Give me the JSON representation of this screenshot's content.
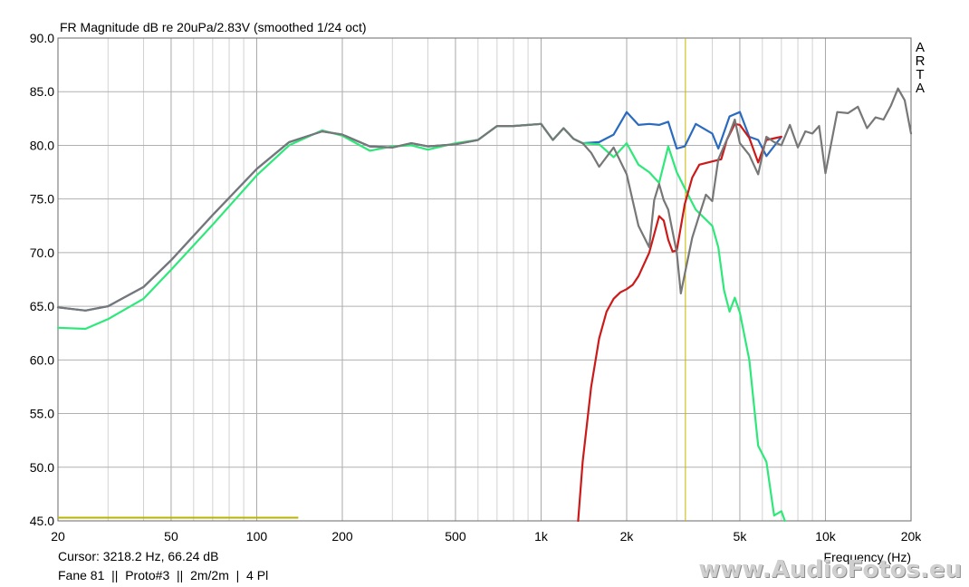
{
  "chart_data": {
    "type": "line",
    "title": "FR Magnitude dB re 20uPa/2.83V (smoothed 1/24 oct)",
    "xlabel": "Frequency (Hz)",
    "ylabel": "",
    "xscale": "log",
    "xlim": [
      20,
      20000
    ],
    "ylim": [
      45,
      90
    ],
    "grid": true,
    "x_tick_labels": [
      "20",
      "50",
      "100",
      "200",
      "500",
      "1k",
      "2k",
      "5k",
      "10k",
      "20k"
    ],
    "y_tick_labels": [
      "90.0",
      "85.0",
      "80.0",
      "75.0",
      "70.0",
      "65.0",
      "60.0",
      "55.0",
      "50.0",
      "45.0"
    ],
    "brand_vertical": "ARTA",
    "cursor_x": 3218.2,
    "marker_segment": {
      "x": [
        20,
        140
      ],
      "y": 45.3
    },
    "series": [
      {
        "color": "#2a6bbf",
        "x": [
          20,
          25,
          30,
          40,
          50,
          70,
          100,
          130,
          170,
          200,
          250,
          300,
          350,
          400,
          500,
          600,
          700,
          800,
          1000,
          1100,
          1200,
          1300,
          1400,
          1600,
          1800,
          2000,
          2200,
          2400,
          2600,
          2800,
          3000,
          3200,
          3500,
          4000,
          4200,
          4600,
          5000,
          5400,
          5800,
          6200,
          7000
        ],
        "y": [
          64.9,
          64.6,
          65.0,
          66.8,
          69.3,
          73.5,
          77.8,
          80.3,
          81.3,
          81.0,
          79.9,
          79.8,
          80.2,
          79.9,
          80.1,
          80.5,
          81.8,
          81.8,
          82.0,
          80.5,
          81.6,
          80.6,
          80.2,
          80.3,
          81.0,
          83.1,
          81.9,
          82.0,
          81.9,
          82.2,
          79.7,
          79.9,
          82.0,
          81.1,
          79.7,
          82.7,
          83.1,
          80.8,
          80.5,
          79.0,
          80.8
        ]
      },
      {
        "color": "#cc1a1a",
        "x": [
          1350,
          1400,
          1500,
          1600,
          1700,
          1800,
          1900,
          2000,
          2100,
          2200,
          2400,
          2600,
          2700,
          2800,
          2900,
          3000,
          3200,
          3400,
          3600,
          4000,
          4300,
          4500,
          4800,
          5000,
          5400,
          5800,
          6200,
          7000
        ],
        "y": [
          45.0,
          50.5,
          57.5,
          62.0,
          64.5,
          65.7,
          66.3,
          66.6,
          67.0,
          67.8,
          70.0,
          73.4,
          73.0,
          71.2,
          70.1,
          70.2,
          74.5,
          77.0,
          78.2,
          78.5,
          78.7,
          80.5,
          82.0,
          81.9,
          80.7,
          78.4,
          80.5,
          80.8
        ]
      },
      {
        "color": "#2ee87a",
        "x": [
          20,
          25,
          30,
          40,
          50,
          70,
          100,
          130,
          170,
          200,
          250,
          300,
          350,
          400,
          500,
          600,
          700,
          800,
          1000,
          1100,
          1200,
          1300,
          1400,
          1600,
          1800,
          2000,
          2200,
          2400,
          2600,
          2800,
          3000,
          3200,
          3500,
          4000,
          4200,
          4400,
          4600,
          4800,
          5000,
          5400,
          5800,
          6200,
          6600,
          7000,
          7200
        ],
        "y": [
          63.0,
          62.9,
          63.8,
          65.7,
          68.4,
          72.6,
          77.2,
          80.0,
          81.4,
          80.9,
          79.5,
          79.9,
          80.0,
          79.6,
          80.2,
          80.5,
          81.8,
          81.8,
          82.0,
          80.5,
          81.6,
          80.6,
          80.2,
          80.1,
          78.9,
          80.2,
          78.2,
          77.5,
          76.5,
          79.9,
          77.5,
          76.0,
          74.0,
          72.5,
          70.5,
          66.5,
          64.5,
          65.8,
          64.4,
          60.0,
          52.0,
          50.5,
          45.5,
          45.9,
          45.0
        ]
      },
      {
        "color": "#777777",
        "x": [
          20,
          25,
          30,
          40,
          50,
          70,
          100,
          130,
          170,
          200,
          250,
          300,
          350,
          400,
          500,
          600,
          700,
          800,
          1000,
          1100,
          1200,
          1300,
          1400,
          1500,
          1600,
          1800,
          2000,
          2200,
          2400,
          2500,
          2600,
          2700,
          2800,
          3000,
          3100,
          3200,
          3400,
          3600,
          3800,
          4000,
          4200,
          4600,
          4800,
          5000,
          5400,
          5800,
          6200,
          6600,
          7000,
          7500,
          8000,
          8500,
          9000,
          9500,
          10000,
          11000,
          12000,
          13000,
          14000,
          15000,
          16000,
          17000,
          18000,
          19000,
          20000
        ],
        "y": [
          64.9,
          64.6,
          65.0,
          66.8,
          69.3,
          73.5,
          77.8,
          80.3,
          81.3,
          81.0,
          79.9,
          79.8,
          80.2,
          79.9,
          80.1,
          80.5,
          81.8,
          81.8,
          82.0,
          80.5,
          81.6,
          80.6,
          80.2,
          79.3,
          78.0,
          79.8,
          77.3,
          72.5,
          70.5,
          74.9,
          76.4,
          74.9,
          74.0,
          70.0,
          66.2,
          68.0,
          71.4,
          73.5,
          75.4,
          74.8,
          78.7,
          81.1,
          82.4,
          80.2,
          79.1,
          77.3,
          80.8,
          80.3,
          80.0,
          81.9,
          79.8,
          81.3,
          81.1,
          81.8,
          77.4,
          83.1,
          83.0,
          83.6,
          81.6,
          82.6,
          82.4,
          83.7,
          85.3,
          84.2,
          81.1
        ]
      }
    ]
  },
  "status": {
    "cursor": "Cursor: 3218.2 Hz, 66.24 dB",
    "info": "Fane 81  ||  Proto#3  ||  2m/2m  |  4 Pl"
  },
  "watermark": "www.AudioFotos.eu"
}
